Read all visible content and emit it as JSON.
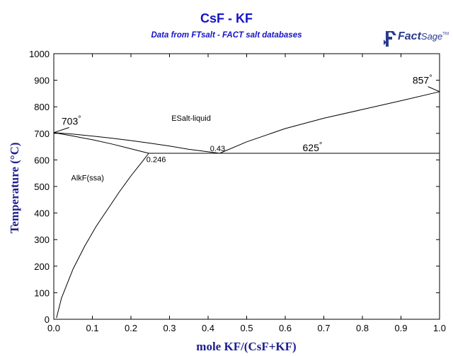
{
  "title": "CsF - KF",
  "subtitle": "Data from FTsalt - FACT salt databases",
  "logo": {
    "fact": "Fact",
    "sage": "Sage",
    "tm": "TM",
    "icon_color": "#2a3a8c"
  },
  "colors": {
    "title": "#1414c8",
    "axis_title": "#1e1e8c",
    "lines": "#000000"
  },
  "chart_data": {
    "type": "line",
    "xlabel": "mole KF/(CsF+KF)",
    "ylabel": "Temperature (°C)",
    "xlim": [
      0,
      1
    ],
    "ylim": [
      0,
      1000
    ],
    "x_ticks": [
      "0.0",
      "0.1",
      "0.2",
      "0.3",
      "0.4",
      "0.5",
      "0.6",
      "0.7",
      "0.8",
      "0.9",
      "1.0"
    ],
    "y_ticks": [
      "0",
      "100",
      "200",
      "300",
      "400",
      "500",
      "600",
      "700",
      "800",
      "900",
      "1000"
    ],
    "grid": false,
    "series": [
      {
        "id": "liquidus-left",
        "x": [
          0,
          0.05,
          0.1,
          0.15,
          0.2,
          0.25,
          0.3,
          0.35,
          0.43
        ],
        "y": [
          703,
          697,
          690,
          682,
          673,
          663,
          652,
          640,
          625
        ]
      },
      {
        "id": "liquidus-right",
        "x": [
          0.43,
          0.5,
          0.6,
          0.7,
          0.8,
          0.9,
          1.0
        ],
        "y": [
          625,
          668,
          718,
          757,
          790,
          823,
          857
        ]
      },
      {
        "id": "solidus",
        "x": [
          0,
          0.05,
          0.1,
          0.15,
          0.2,
          0.246
        ],
        "y": [
          703,
          690,
          676,
          660,
          642,
          625
        ]
      },
      {
        "id": "solvus",
        "x": [
          0.007,
          0.02,
          0.05,
          0.08,
          0.11,
          0.14,
          0.17,
          0.2,
          0.23,
          0.246
        ],
        "y": [
          5,
          80,
          190,
          275,
          350,
          415,
          480,
          540,
          595,
          625
        ]
      },
      {
        "id": "eutectic",
        "x": [
          0.246,
          1.0
        ],
        "y": [
          625,
          625
        ]
      }
    ],
    "annotations": [
      {
        "text": "703",
        "degree": "°",
        "x": 0.02,
        "y": 733,
        "size": "large",
        "anchor": "start"
      },
      {
        "text": "857",
        "degree": "°",
        "x": 0.93,
        "y": 887,
        "size": "large",
        "anchor": "start"
      },
      {
        "text": "625",
        "degree": "°",
        "x": 0.645,
        "y": 633,
        "size": "large",
        "anchor": "start"
      },
      {
        "text": "0.43",
        "x": 0.405,
        "y": 633,
        "size": "small",
        "anchor": "start"
      },
      {
        "text": "0.246",
        "x": 0.24,
        "y": 592,
        "size": "small",
        "anchor": "start"
      },
      {
        "text": "ESalt-liquid",
        "x": 0.305,
        "y": 748,
        "size": "small",
        "anchor": "start"
      },
      {
        "text": "AlkF(ssa)",
        "x": 0.045,
        "y": 522,
        "size": "small",
        "anchor": "start"
      }
    ],
    "leaders": [
      {
        "x": [
          0,
          0.04
        ],
        "y": [
          703,
          722
        ]
      },
      {
        "x": [
          0.97,
          1.0
        ],
        "y": [
          876,
          857
        ]
      }
    ]
  }
}
